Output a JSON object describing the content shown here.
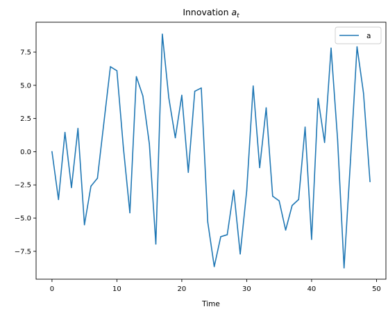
{
  "chart_data": {
    "type": "line",
    "title_main": "Innovation ",
    "title_var": "a",
    "title_sub": "t",
    "xlabel": "Time",
    "ylabel": "",
    "xlim": [
      -2.45,
      51.45
    ],
    "ylim": [
      -9.6,
      9.75
    ],
    "xticks": [
      0,
      10,
      20,
      30,
      40,
      50
    ],
    "xtick_labels": [
      "0",
      "10",
      "20",
      "30",
      "40",
      "50"
    ],
    "yticks": [
      -7.5,
      -5.0,
      -2.5,
      0.0,
      2.5,
      5.0,
      7.5
    ],
    "ytick_labels": [
      "−7.5",
      "−5.0",
      "−2.5",
      "0.0",
      "2.5",
      "5.0",
      "7.5"
    ],
    "grid": false,
    "legend_position": "top-right",
    "series": [
      {
        "name": "a",
        "color": "#1f77b4",
        "x": [
          0,
          1,
          2,
          3,
          4,
          5,
          6,
          7,
          8,
          9,
          10,
          11,
          12,
          13,
          14,
          15,
          16,
          17,
          18,
          19,
          20,
          21,
          22,
          23,
          24,
          25,
          26,
          27,
          28,
          29,
          30,
          31,
          32,
          33,
          34,
          35,
          36,
          37,
          38,
          39,
          40,
          41,
          42,
          43,
          44,
          45,
          46,
          47,
          48,
          49
        ],
        "y": [
          0.0,
          -3.6,
          1.45,
          -2.7,
          1.75,
          -5.5,
          -2.6,
          -2.0,
          2.2,
          6.4,
          6.1,
          0.3,
          -4.6,
          5.65,
          4.2,
          0.6,
          -6.95,
          8.85,
          4.05,
          1.05,
          4.25,
          -1.55,
          4.55,
          4.8,
          -5.3,
          -8.65,
          -6.4,
          -6.25,
          -2.9,
          -7.7,
          -2.95,
          4.95,
          -1.2,
          3.3,
          -3.35,
          -3.7,
          -5.9,
          -4.05,
          -3.6,
          1.85,
          -6.6,
          4.0,
          0.7,
          7.8,
          0.95,
          -8.75,
          -0.6,
          7.9,
          4.4,
          -2.25
        ]
      }
    ]
  }
}
